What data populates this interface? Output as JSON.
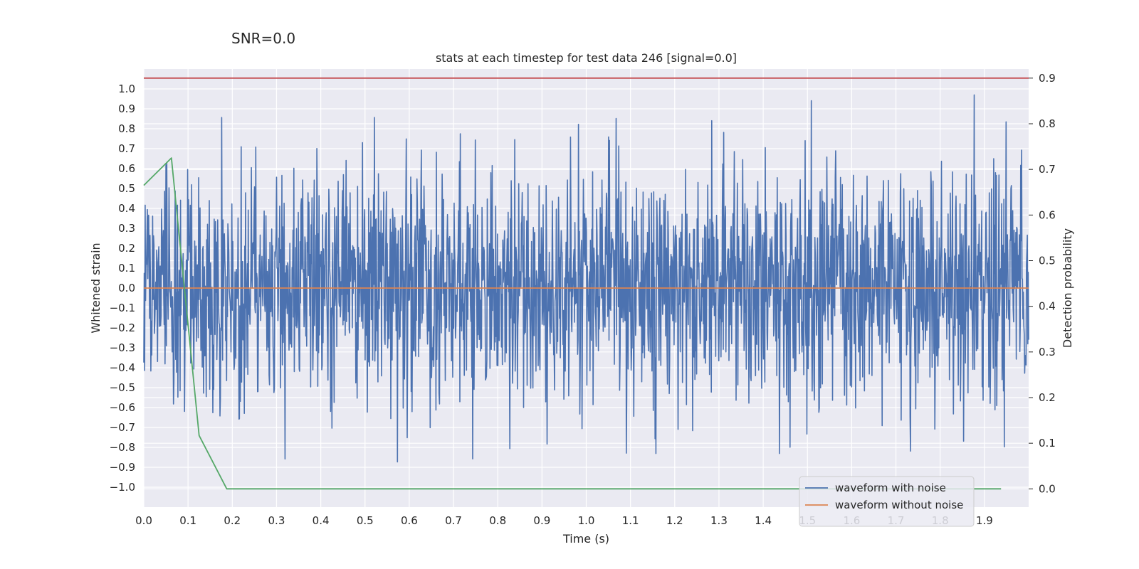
{
  "suptitle": "SNR=0.0",
  "chart_data": {
    "type": "line",
    "title": "stats at each timestep for test data 246 [signal=0.0]",
    "xlabel": "Time (s)",
    "ylabel": "Whitened strain",
    "y2label": "Detection probability",
    "xlim": [
      0.0,
      2.0
    ],
    "ylim": [
      -1.1,
      1.1
    ],
    "y2lim": [
      -0.04,
      0.92
    ],
    "xticks": [
      "0.0",
      "0.1",
      "0.2",
      "0.3",
      "0.4",
      "0.5",
      "0.6",
      "0.7",
      "0.8",
      "0.9",
      "1.0",
      "1.1",
      "1.2",
      "1.3",
      "1.4",
      "1.5",
      "1.6",
      "1.7",
      "1.8",
      "1.9"
    ],
    "yticks": [
      "1.0",
      "0.9",
      "0.8",
      "0.7",
      "0.6",
      "0.5",
      "0.4",
      "0.3",
      "0.2",
      "0.1",
      "0.0",
      "−0.1",
      "−0.2",
      "−0.3",
      "−0.4",
      "−0.5",
      "−0.6",
      "−0.7",
      "−0.8",
      "−0.9",
      "−1.0"
    ],
    "y2ticks": [
      "0.9",
      "0.8",
      "0.7",
      "0.6",
      "0.5",
      "0.4",
      "0.3",
      "0.2",
      "0.1",
      "0.0"
    ],
    "grid": true,
    "legend_position": "lower right",
    "series": [
      {
        "name": "waveform with noise",
        "color": "#4c72b0",
        "axis": "left",
        "kind": "noise",
        "amplitude": 1.0
      },
      {
        "name": "waveform without noise",
        "color": "#dd8452",
        "axis": "left",
        "x": [
          0.0,
          2.0
        ],
        "y": [
          0.0,
          0.0
        ]
      },
      {
        "color": "#55a868",
        "axis": "right",
        "x": [
          0.0,
          0.0625,
          0.125,
          0.1875,
          1.9375
        ],
        "y": [
          0.665,
          0.725,
          0.117,
          0.0,
          0.0
        ]
      },
      {
        "color": "#c44e52",
        "axis": "right",
        "x": [
          0.0,
          2.0
        ],
        "y": [
          0.9,
          0.9
        ]
      }
    ]
  }
}
